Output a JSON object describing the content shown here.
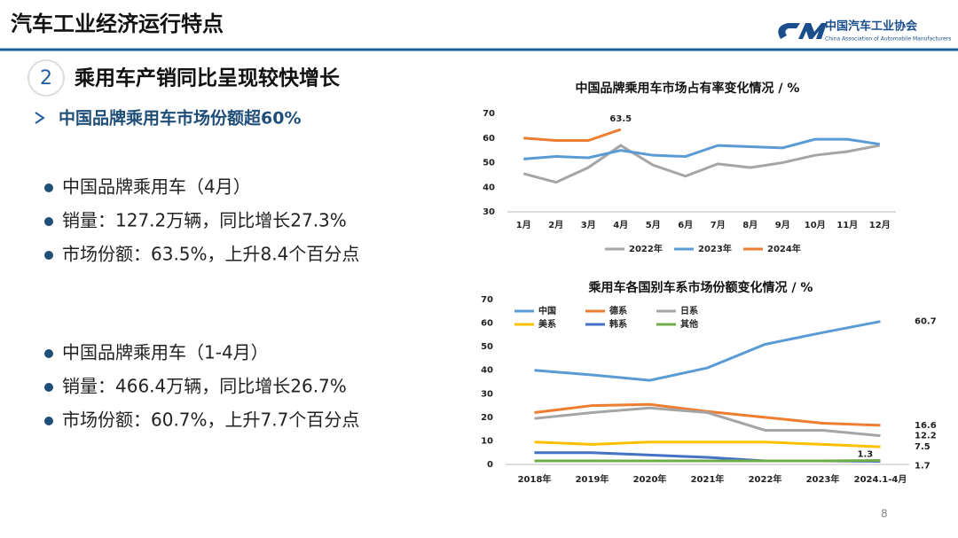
{
  "header": {
    "title": "汽车工业经济运行特点",
    "org": "中国汽车工业协会",
    "org_en": "China Association of Automobile Manufacturers"
  },
  "section": {
    "number": "2",
    "title": "乘用车产销同比呈现较快增长"
  },
  "subheading": "中国品牌乘用车市场份额超60%",
  "groups": [
    [
      "中国品牌乘用车（4月）",
      "销量：127.2万辆，同比增长27.3%",
      "市场份额：63.5%，上升8.4个百分点"
    ],
    [
      "中国品牌乘用车（1-4月）",
      "销量：466.4万辆，同比增长26.7%",
      "市场份额：60.7%，上升7.7个百分点"
    ]
  ],
  "page": 8,
  "chart_data": [
    {
      "type": "line",
      "title": "中国品牌乘用车市场占有率变化情况 / %",
      "categories": [
        "1月",
        "2月",
        "3月",
        "4月",
        "5月",
        "6月",
        "7月",
        "8月",
        "9月",
        "10月",
        "11月",
        "12月"
      ],
      "ylim": [
        30,
        70
      ],
      "yticks": [
        30,
        40,
        50,
        60,
        70
      ],
      "grid": false,
      "legend": "bottom",
      "series": [
        {
          "name": "2022年",
          "color": "#a5a5a5",
          "values": [
            45.5,
            42,
            48,
            57,
            49,
            44.5,
            49.5,
            48,
            50,
            53,
            54.5,
            57
          ]
        },
        {
          "name": "2023年",
          "color": "#5b9bd5",
          "values": [
            51.5,
            52.5,
            52,
            55,
            53,
            52.5,
            57,
            56.5,
            56,
            59.5,
            59.5,
            57.5
          ]
        },
        {
          "name": "2024年",
          "color": "#ed7d31",
          "values": [
            60,
            59,
            59,
            63.5,
            null,
            null,
            null,
            null,
            null,
            null,
            null,
            null
          ],
          "data_labels": "last"
        }
      ]
    },
    {
      "type": "line",
      "title": "乘用车各国别车系市场份额变化情况 / %",
      "categories": [
        "2018年",
        "2019年",
        "2020年",
        "2021年",
        "2022年",
        "2023年",
        "2024.1-4月"
      ],
      "ylim": [
        0,
        70
      ],
      "yticks": [
        0,
        10,
        20,
        30,
        40,
        50,
        60,
        70
      ],
      "grid": false,
      "legend": "top-left",
      "series": [
        {
          "name": "中国",
          "color": "#5b9bd5",
          "values": [
            40,
            38,
            35.7,
            41,
            51,
            56,
            60.7
          ],
          "data_labels": "last"
        },
        {
          "name": "德系",
          "color": "#ed7d31",
          "values": [
            22,
            25,
            25.5,
            22.5,
            20,
            17.5,
            16.6
          ],
          "data_labels": "last"
        },
        {
          "name": "日系",
          "color": "#a5a5a5",
          "values": [
            19.5,
            22,
            24,
            22,
            14.5,
            14.5,
            12.2
          ],
          "data_labels": "last"
        },
        {
          "name": "美系",
          "color": "#ffc000",
          "values": [
            9.5,
            8.5,
            9.5,
            9.5,
            9.5,
            8.5,
            7.5
          ],
          "data_labels": "last"
        },
        {
          "name": "韩系",
          "color": "#4472c4",
          "values": [
            5,
            5,
            4,
            3,
            1.5,
            1.5,
            1.3
          ],
          "data_labels": "last"
        },
        {
          "name": "其他",
          "color": "#70ad47",
          "values": [
            1.5,
            1.5,
            1.5,
            1.5,
            1.5,
            1.5,
            1.7
          ],
          "data_labels": "last"
        }
      ]
    }
  ]
}
